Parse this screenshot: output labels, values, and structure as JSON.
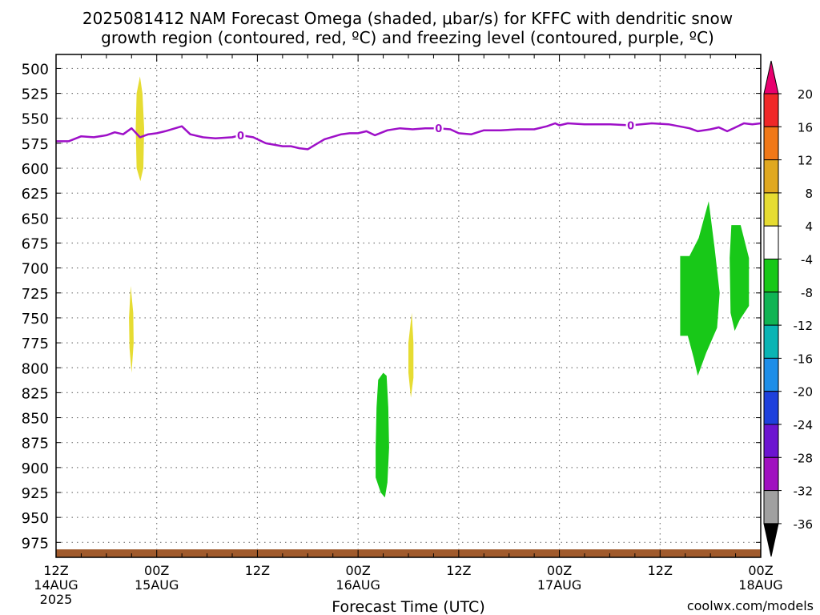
{
  "title_line1": "2025081412 NAM Forecast Omega (shaded, μbar/s) for KFFC with dendritic snow",
  "title_line2": "growth region (contoured, red, ºC) and freezing level (contoured, purple, ºC)",
  "watermark": "coolwx.com/models",
  "chart_data": {
    "type": "contour",
    "xlabel": "Forecast Time (UTC)",
    "ylabel": "",
    "x_range_hours": [
      0,
      84
    ],
    "y_axis": {
      "range": [
        486,
        990
      ],
      "inverted": true,
      "ticks": [
        500,
        525,
        550,
        575,
        600,
        625,
        650,
        675,
        700,
        725,
        750,
        775,
        800,
        825,
        850,
        875,
        900,
        925,
        950,
        975
      ]
    },
    "x_ticks": [
      {
        "hour": 0,
        "label": "12Z",
        "sub1": "14AUG",
        "sub2": "2025"
      },
      {
        "hour": 12,
        "label": "00Z",
        "sub1": "15AUG",
        "sub2": ""
      },
      {
        "hour": 24,
        "label": "12Z",
        "sub1": "",
        "sub2": ""
      },
      {
        "hour": 36,
        "label": "00Z",
        "sub1": "16AUG",
        "sub2": ""
      },
      {
        "hour": 48,
        "label": "12Z",
        "sub1": "",
        "sub2": ""
      },
      {
        "hour": 60,
        "label": "00Z",
        "sub1": "17AUG",
        "sub2": ""
      },
      {
        "hour": 72,
        "label": "12Z",
        "sub1": "",
        "sub2": ""
      },
      {
        "hour": 84,
        "label": "00Z",
        "sub1": "18AUG",
        "sub2": ""
      }
    ],
    "grid": true,
    "colorbar": {
      "labels": [
        "20",
        "16",
        "12",
        "8",
        "4",
        "-4",
        "-8",
        "-12",
        "-16",
        "-20",
        "-24",
        "-28",
        "-32",
        "-36"
      ],
      "colors": [
        "#e8006e",
        "#f02828",
        "#f07818",
        "#e0a820",
        "#e6dc32",
        "#ffffff",
        "#18c818",
        "#10b454",
        "#0ab4b4",
        "#1e8ee8",
        "#1e40dc",
        "#6c14d0",
        "#a010c0",
        "#a0a0a0",
        "#000000"
      ]
    },
    "freezing_level": {
      "color": "#9e10c8",
      "label": "0",
      "label_hours": [
        22,
        45.6,
        68.5
      ],
      "points": [
        [
          0,
          573
        ],
        [
          1.5,
          573
        ],
        [
          3,
          568
        ],
        [
          4.5,
          569
        ],
        [
          6,
          567
        ],
        [
          7,
          564
        ],
        [
          8,
          566
        ],
        [
          9,
          560
        ],
        [
          10,
          569
        ],
        [
          11,
          566
        ],
        [
          12,
          565
        ],
        [
          13,
          563
        ],
        [
          15,
          558
        ],
        [
          16,
          566
        ],
        [
          17.5,
          569
        ],
        [
          19,
          570
        ],
        [
          21,
          569
        ],
        [
          22,
          567
        ],
        [
          23.5,
          569
        ],
        [
          25,
          575
        ],
        [
          27,
          578
        ],
        [
          28,
          578
        ],
        [
          29,
          580
        ],
        [
          30,
          581
        ],
        [
          31,
          576
        ],
        [
          32,
          571
        ],
        [
          34,
          566
        ],
        [
          35,
          565
        ],
        [
          36,
          565
        ],
        [
          37,
          563
        ],
        [
          38,
          567
        ],
        [
          39.5,
          562
        ],
        [
          41,
          560
        ],
        [
          42.5,
          561
        ],
        [
          44,
          560
        ],
        [
          45.6,
          560
        ],
        [
          47,
          561
        ],
        [
          48,
          565
        ],
        [
          49.5,
          566
        ],
        [
          51,
          562
        ],
        [
          53,
          562
        ],
        [
          55,
          561
        ],
        [
          57,
          561
        ],
        [
          58.5,
          558
        ],
        [
          59.5,
          555
        ],
        [
          60,
          557
        ],
        [
          61,
          555
        ],
        [
          63,
          556
        ],
        [
          64.5,
          556
        ],
        [
          66,
          556
        ],
        [
          68.5,
          557
        ],
        [
          71,
          555
        ],
        [
          73,
          556
        ],
        [
          75.5,
          560
        ],
        [
          76.5,
          563
        ],
        [
          78,
          561
        ],
        [
          79,
          559
        ],
        [
          80,
          563
        ],
        [
          81,
          559
        ],
        [
          82,
          555
        ],
        [
          83,
          556
        ],
        [
          84,
          555
        ]
      ]
    },
    "ground": {
      "color": "#a05a2c",
      "top_hpa": 982,
      "bottom_hpa": 990
    },
    "shaded_regions": [
      {
        "range": "4 to 8",
        "color": "#e6dc32",
        "points": [
          [
            10.0,
            508
          ],
          [
            10.3,
            525
          ],
          [
            10.5,
            560
          ],
          [
            10.4,
            600
          ],
          [
            10.05,
            613
          ],
          [
            9.6,
            600
          ],
          [
            9.5,
            560
          ],
          [
            9.6,
            525
          ]
        ]
      },
      {
        "range": "4 to 8",
        "color": "#e6dc32",
        "points": [
          [
            8.9,
            718
          ],
          [
            9.2,
            745
          ],
          [
            9.25,
            775
          ],
          [
            9.0,
            805
          ],
          [
            8.75,
            780
          ],
          [
            8.7,
            750
          ]
        ]
      },
      {
        "range": "4 to 8",
        "color": "#e6dc32",
        "points": [
          [
            42.4,
            745
          ],
          [
            42.6,
            775
          ],
          [
            42.6,
            810
          ],
          [
            42.3,
            830
          ],
          [
            42.0,
            805
          ],
          [
            42.0,
            775
          ]
        ]
      },
      {
        "range": "-4 to -8",
        "color": "#18c818",
        "points": [
          [
            39.0,
            805
          ],
          [
            39.4,
            808
          ],
          [
            39.6,
            840
          ],
          [
            39.7,
            880
          ],
          [
            39.5,
            915
          ],
          [
            39.2,
            930
          ],
          [
            38.7,
            925
          ],
          [
            38.1,
            910
          ],
          [
            38.1,
            880
          ],
          [
            38.2,
            840
          ],
          [
            38.4,
            812
          ]
        ]
      },
      {
        "range": "-4 to -8",
        "color": "#18c818",
        "points": [
          [
            77.8,
            633
          ],
          [
            78.5,
            680
          ],
          [
            79.1,
            725
          ],
          [
            78.8,
            760
          ],
          [
            77.5,
            785
          ],
          [
            76.5,
            808
          ],
          [
            76.0,
            790
          ],
          [
            75.3,
            768
          ],
          [
            74.4,
            768
          ],
          [
            74.4,
            688
          ],
          [
            75.5,
            688
          ],
          [
            76.6,
            670
          ]
        ]
      },
      {
        "range": "-4 to -8",
        "color": "#18c818",
        "points": [
          [
            80.5,
            657
          ],
          [
            81.6,
            657
          ],
          [
            82.6,
            690
          ],
          [
            82.6,
            738
          ],
          [
            81.5,
            752
          ],
          [
            80.9,
            763
          ],
          [
            80.4,
            745
          ],
          [
            80.3,
            690
          ]
        ]
      }
    ]
  }
}
